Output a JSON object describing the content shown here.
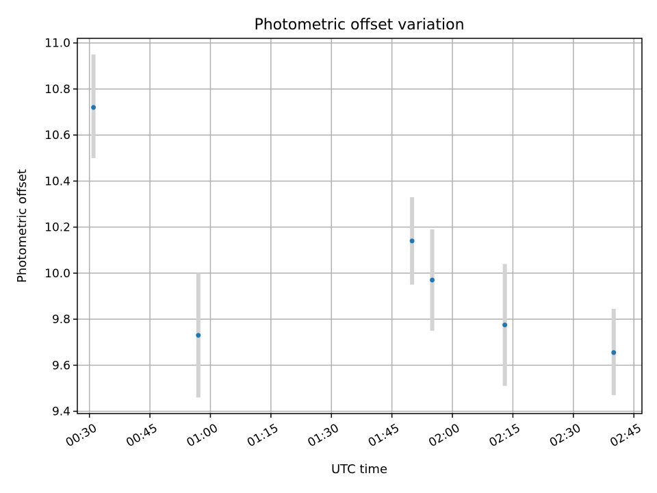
{
  "chart_data": {
    "type": "scatter",
    "title": "Photometric offset variation",
    "xlabel": "UTC time",
    "ylabel": "Photometric offset",
    "x_axis": {
      "type": "time",
      "range": [
        "00:27",
        "02:47"
      ],
      "ticks": [
        "00:30",
        "00:45",
        "01:00",
        "01:15",
        "01:30",
        "01:45",
        "02:00",
        "02:15",
        "02:30",
        "02:45"
      ]
    },
    "y_axis": {
      "range": [
        9.39,
        11.02
      ],
      "ticks": [
        "9.4",
        "9.6",
        "9.8",
        "10.0",
        "10.2",
        "10.4",
        "10.6",
        "10.8",
        "11.0"
      ]
    },
    "grid": true,
    "marker_color": "#1f77b4",
    "errorbar_color": "#d3d3d3",
    "points": [
      {
        "time": "00:31",
        "y": 10.72,
        "err_low": 10.5,
        "err_high": 10.95
      },
      {
        "time": "00:57",
        "y": 9.73,
        "err_low": 9.46,
        "err_high": 10.0
      },
      {
        "time": "01:50",
        "y": 10.14,
        "err_low": 9.95,
        "err_high": 10.33
      },
      {
        "time": "01:55",
        "y": 9.97,
        "err_low": 9.75,
        "err_high": 10.19
      },
      {
        "time": "02:13",
        "y": 9.775,
        "err_low": 9.51,
        "err_high": 10.04
      },
      {
        "time": "02:40",
        "y": 9.655,
        "err_low": 9.47,
        "err_high": 9.845
      }
    ]
  }
}
